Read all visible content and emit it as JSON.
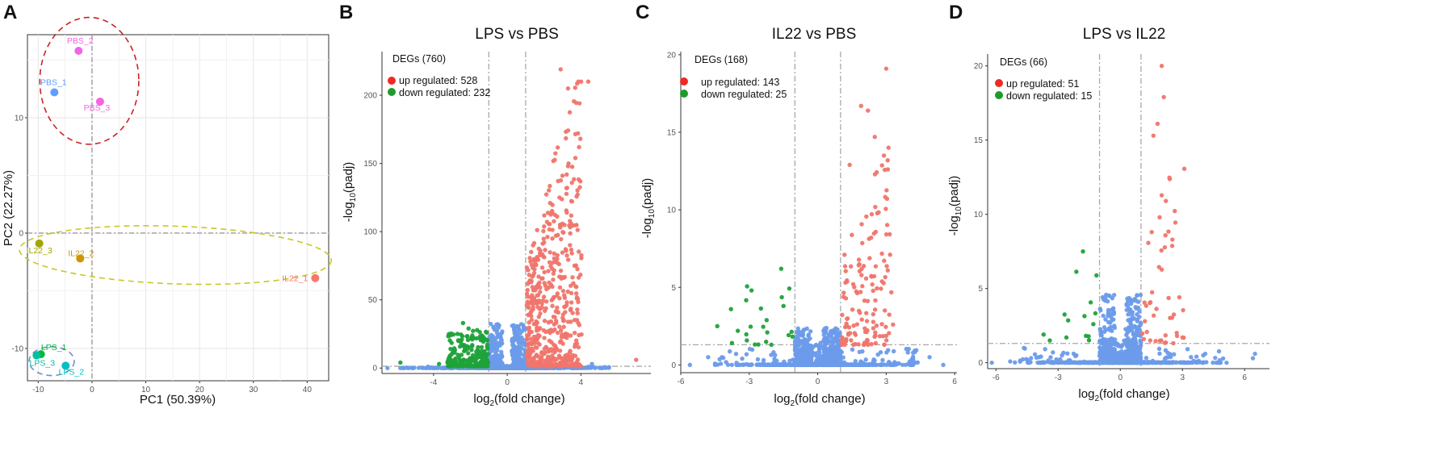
{
  "chart_data": [
    {
      "id": "A",
      "panel_label": "A",
      "type": "scatter",
      "title": "",
      "xlabel": "PC1 (50.39%)",
      "ylabel": "PC2 (22.27%)",
      "xlim": [
        -12,
        44
      ],
      "ylim": [
        -12.8,
        17.2
      ],
      "xticks": [
        -10,
        0,
        10,
        20,
        30,
        40
      ],
      "yticks": [
        -10,
        0,
        10
      ],
      "grid": true,
      "ref_lines": {
        "x": 0,
        "y": 0
      },
      "points": [
        {
          "name": "PBS_1",
          "x": -7.0,
          "y": 12.2,
          "color": "#619CFF",
          "label_dx": -1,
          "label_dy": -9,
          "anchor": "middle"
        },
        {
          "name": "PBS_2",
          "x": -2.5,
          "y": 15.8,
          "color": "#F564E3",
          "label_dx": 2,
          "label_dy": -9,
          "anchor": "middle"
        },
        {
          "name": "PBS_3",
          "x": 1.5,
          "y": 11.4,
          "color": "#F564E3",
          "label_dx": -4,
          "label_dy": 11,
          "anchor": "middle"
        },
        {
          "name": "IL22_1",
          "x": 41.5,
          "y": -3.9,
          "color": "#F8766D",
          "label_dx": -9,
          "label_dy": 4,
          "anchor": "end"
        },
        {
          "name": "IL22_2",
          "x": -2.2,
          "y": -2.2,
          "color": "#CD9600",
          "label_dx": 1,
          "label_dy": -3,
          "anchor": "middle"
        },
        {
          "name": "IL22_3",
          "x": -9.8,
          "y": -0.9,
          "color": "#A3A500",
          "label_dx": 0,
          "label_dy": 12,
          "anchor": "middle"
        },
        {
          "name": "LPS_1",
          "x": -9.5,
          "y": -10.5,
          "color": "#00BA38",
          "label_dx": 16,
          "label_dy": -5,
          "anchor": "middle"
        },
        {
          "name": "LPS_2",
          "x": -4.9,
          "y": -11.5,
          "color": "#00BFC4",
          "label_dx": 7,
          "label_dy": 11,
          "anchor": "middle"
        },
        {
          "name": "LPS_3",
          "x": -10.3,
          "y": -10.6,
          "color": "#00C19F",
          "label_dx": 7,
          "label_dy": 13,
          "anchor": "middle"
        }
      ],
      "ellipses": [
        {
          "group": "PBS",
          "cx": -0.5,
          "cy": 13.2,
          "rx": 9.2,
          "ry": 5.5,
          "angle": 0,
          "color": "#CC2222"
        },
        {
          "group": "IL22",
          "cx": 15.5,
          "cy": -1.9,
          "rx": 29,
          "ry": 2.5,
          "angle": 2,
          "color": "#C8C825"
        },
        {
          "group": "LPS",
          "cx": -7.5,
          "cy": -11.1,
          "rx": 4.2,
          "ry": 1.25,
          "angle": 0,
          "color": "#6E8FCC"
        }
      ]
    },
    {
      "id": "B",
      "panel_label": "B",
      "type": "scatter",
      "title": "LPS vs PBS",
      "xlabel_pre": "log",
      "xlabel_sub": "2",
      "xlabel_post": "(fold change)",
      "ylabel_pre": "-log",
      "ylabel_sub": "10",
      "ylabel_post": "(padj)",
      "xlim": [
        -6.8,
        7.8
      ],
      "ylim": [
        -4,
        232
      ],
      "xticks": [
        -4,
        0,
        4
      ],
      "yticks": [
        0,
        50,
        100,
        150,
        200
      ],
      "fc_cutoff": [
        -1,
        1
      ],
      "padj_cutoff": 1.3,
      "up_max_y": 210,
      "down_max_y": 33,
      "seed": 11,
      "n_blue": 1100,
      "deg_title": "DEGs (760)",
      "up_label": "up regulated: 528",
      "up_count": 528,
      "down_label": "down regulated: 232",
      "down_count": 232,
      "legend_pos": "top-left",
      "highlight": {
        "up": [
          [
            2.9,
            219
          ],
          [
            3.3,
            205
          ],
          [
            4.4,
            210
          ],
          [
            3.9,
            162
          ],
          [
            3.7,
            154
          ],
          [
            3.3,
            148
          ],
          [
            3.0,
            141
          ],
          [
            7.0,
            6
          ]
        ],
        "down": [
          [
            -5.8,
            4
          ],
          [
            -2.4,
            33
          ],
          [
            -2.7,
            25
          ],
          [
            -3.7,
            3
          ],
          [
            -2.1,
            29
          ]
        ],
        "blue": [
          [
            -6.5,
            0
          ],
          [
            -5.8,
            0
          ],
          [
            5.1,
            0
          ],
          [
            4.6,
            3
          ]
        ]
      },
      "legend_dots": "merged",
      "colors": {
        "up": "#F0756C",
        "down": "#1FA23A",
        "ns": "#6B9BEA",
        "legend_up": "#EE2A24",
        "legend_down": "#1E9B2C"
      }
    },
    {
      "id": "C",
      "panel_label": "C",
      "type": "scatter",
      "title": "IL22 vs PBS",
      "xlabel_pre": "log",
      "xlabel_sub": "2",
      "xlabel_post": "(fold change)",
      "ylabel_pre": "-log",
      "ylabel_sub": "10",
      "ylabel_post": "(padj)",
      "xlim": [
        -6.0,
        6.1
      ],
      "ylim": [
        -0.5,
        20.2
      ],
      "xticks": [
        -6,
        -3,
        0,
        3,
        6
      ],
      "yticks": [
        0,
        5,
        10,
        15,
        20
      ],
      "fc_cutoff": [
        -1,
        1
      ],
      "padj_cutoff": 1.3,
      "up_max_y": 16.5,
      "down_max_y": 6.2,
      "seed": 23,
      "n_blue": 1300,
      "deg_title": "DEGs (168)",
      "up_label": "up regulated: 143",
      "up_count": 143,
      "down_label": "down regulated: 25",
      "down_count": 25,
      "legend_pos": "top-left",
      "highlight": {
        "up": [
          [
            3.0,
            19.1
          ],
          [
            1.9,
            16.7
          ],
          [
            2.2,
            16.4
          ],
          [
            2.5,
            14.7
          ],
          [
            2.9,
            13.5
          ],
          [
            1.4,
            12.9
          ],
          [
            3.3,
            2.6
          ]
        ],
        "down": [
          [
            -1.6,
            6.2
          ],
          [
            -2.9,
            4.8
          ],
          [
            -4.4,
            2.5
          ],
          [
            -3.5,
            2.2
          ],
          [
            -1.5,
            3.8
          ],
          [
            -3.8,
            3.6
          ]
        ],
        "blue": [
          [
            -5.6,
            0
          ],
          [
            5.5,
            0
          ],
          [
            4.9,
            0.5
          ],
          [
            -4.8,
            0.5
          ]
        ]
      },
      "legend_dots": "separate",
      "colors": {
        "up": "#F0756C",
        "down": "#1FA23A",
        "ns": "#6B9BEA",
        "legend_up": "#EE2A24",
        "legend_down": "#1E9B2C"
      }
    },
    {
      "id": "D",
      "panel_label": "D",
      "type": "scatter",
      "title": "LPS vs IL22",
      "xlabel_pre": "log",
      "xlabel_sub": "2",
      "xlabel_post": "(fold change)",
      "ylabel_pre": "-log",
      "ylabel_sub": "10",
      "ylabel_post": "(padj)",
      "xlim": [
        -6.4,
        7.2
      ],
      "ylim": [
        -0.4,
        20.8
      ],
      "xticks": [
        -6,
        -3,
        0,
        3,
        6
      ],
      "yticks": [
        0,
        5,
        10,
        15,
        20
      ],
      "fc_cutoff": [
        -1,
        1
      ],
      "padj_cutoff": 1.3,
      "up_max_y": 18,
      "down_max_y": 7.5,
      "seed": 37,
      "n_blue": 1000,
      "deg_title": "DEGs (66)",
      "up_label": "up regulated: 51",
      "up_count": 51,
      "down_label": "down regulated: 15",
      "down_count": 15,
      "legend_pos": "top-left",
      "highlight": {
        "up": [
          [
            2.0,
            20.0
          ],
          [
            2.1,
            17.9
          ],
          [
            1.8,
            16.1
          ],
          [
            1.6,
            15.3
          ],
          [
            2.2,
            10.9
          ],
          [
            1.9,
            9.8
          ],
          [
            3.0,
            1.7
          ]
        ],
        "down": [
          [
            -1.8,
            7.5
          ],
          [
            -3.7,
            1.9
          ],
          [
            -3.4,
            1.5
          ],
          [
            -2.6,
            1.7
          ],
          [
            -1.3,
            2.6
          ]
        ],
        "blue": [
          [
            -6.2,
            0
          ],
          [
            6.5,
            0.6
          ],
          [
            4.1,
            0.6
          ],
          [
            6.4,
            0.3
          ]
        ]
      },
      "legend_dots": "separate",
      "colors": {
        "up": "#F0756C",
        "down": "#1FA23A",
        "ns": "#6B9BEA",
        "legend_up": "#EE2A24",
        "legend_down": "#1E9B2C"
      }
    }
  ]
}
